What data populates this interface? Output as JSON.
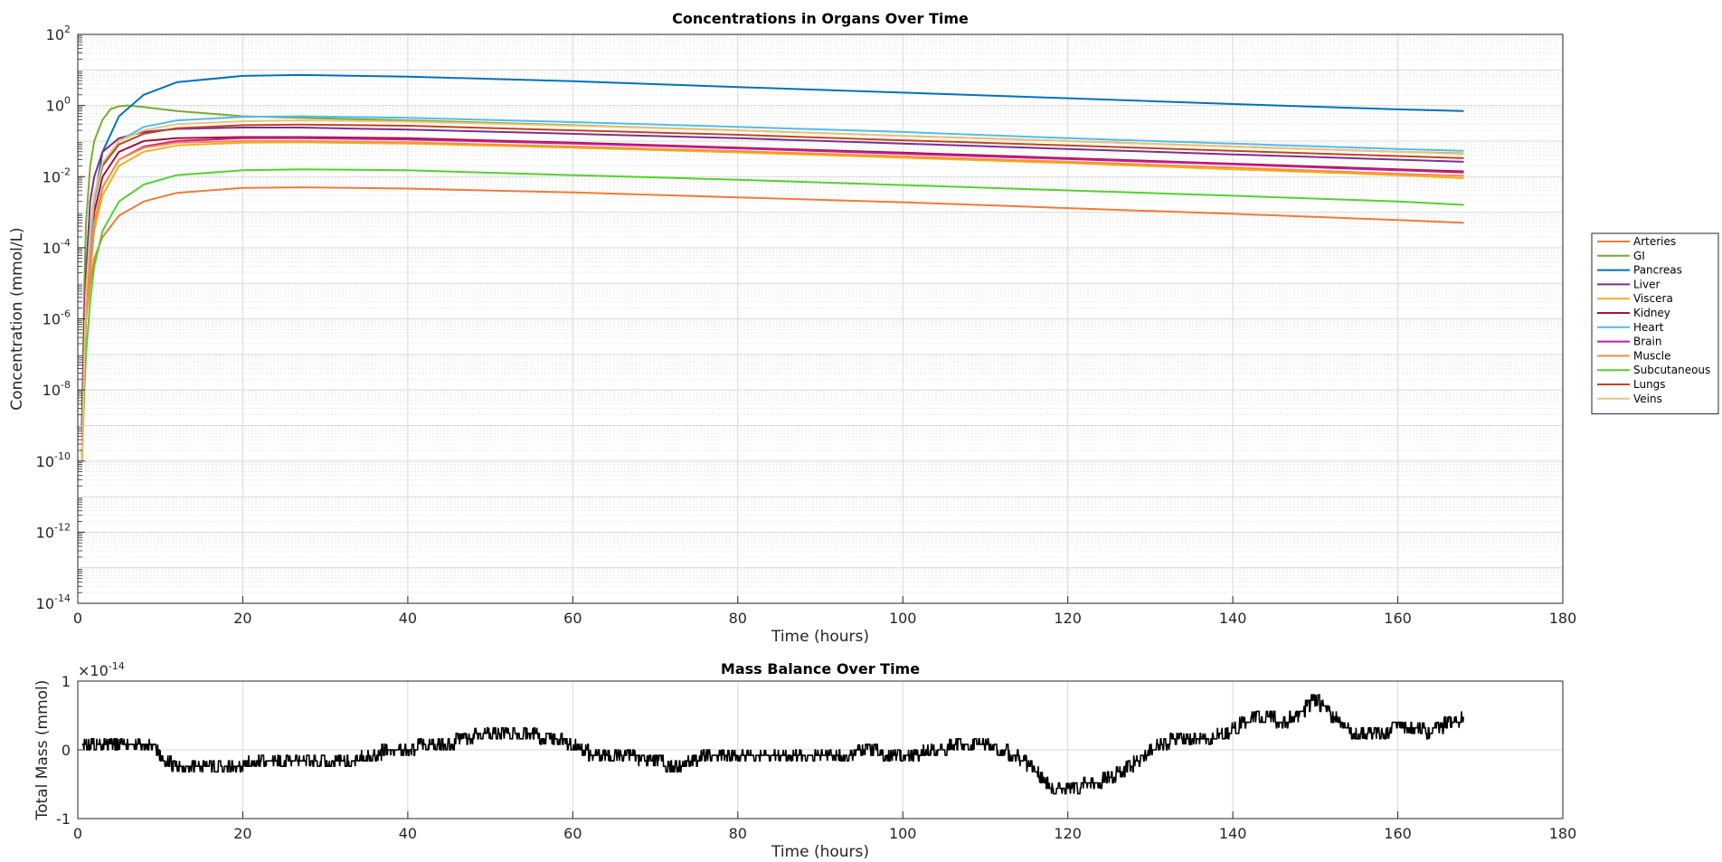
{
  "chart_data": [
    {
      "type": "line",
      "title": "Concentrations in Organs Over Time",
      "xlabel": "Time (hours)",
      "ylabel": "Concentration (mmol/L)",
      "xlim": [
        0,
        180
      ],
      "ylim": [
        1e-14,
        100
      ],
      "yscale": "log",
      "grid": true,
      "legend_position": "right",
      "xticks": [
        "0",
        "20",
        "40",
        "60",
        "80",
        "100",
        "120",
        "140",
        "160",
        "180"
      ],
      "yticks": [
        {
          "base": "10",
          "exp": "2",
          "value": 100
        },
        {
          "base": "10",
          "exp": "0",
          "value": 1
        },
        {
          "base": "10",
          "exp": "-2",
          "value": 0.01
        },
        {
          "base": "10",
          "exp": "-4",
          "value": 0.0001
        },
        {
          "base": "10",
          "exp": "-6",
          "value": 1e-06
        },
        {
          "base": "10",
          "exp": "-8",
          "value": 1e-08
        },
        {
          "base": "10",
          "exp": "-10",
          "value": 1e-10
        },
        {
          "base": "10",
          "exp": "-12",
          "value": 1e-12
        },
        {
          "base": "10",
          "exp": "-14",
          "value": 1e-14
        }
      ],
      "series": [
        {
          "name": "Arteries",
          "color": "#f07a3a",
          "x": [
            0.5,
            0.8,
            1,
            1.5,
            2,
            3,
            5,
            8,
            12,
            20,
            27,
            40,
            60,
            80,
            100,
            120,
            140,
            160,
            168
          ],
          "y": [
            1e-10,
            1e-07,
            1e-06,
            1e-05,
            5e-05,
            0.0002,
            0.0008,
            0.002,
            0.0035,
            0.0048,
            0.005,
            0.0046,
            0.0036,
            0.0026,
            0.0019,
            0.0013,
            0.0009,
            0.0006,
            0.0005
          ]
        },
        {
          "name": "GI",
          "color": "#77ac30",
          "x": [
            0.5,
            0.8,
            1,
            1.5,
            2,
            3,
            4,
            5,
            6,
            8,
            12,
            20,
            27,
            40,
            60,
            80,
            100,
            120,
            140,
            160,
            168
          ],
          "y": [
            1e-09,
            1e-05,
            0.0005,
            0.02,
            0.1,
            0.4,
            0.8,
            0.95,
            1.0,
            0.9,
            0.7,
            0.5,
            0.45,
            0.38,
            0.28,
            0.2,
            0.14,
            0.1,
            0.07,
            0.05,
            0.045
          ]
        },
        {
          "name": "Pancreas",
          "color": "#0072bd",
          "x": [
            0.5,
            1,
            1.5,
            2,
            3,
            5,
            8,
            12,
            20,
            27,
            40,
            60,
            80,
            100,
            120,
            140,
            160,
            168
          ],
          "y": [
            1e-09,
            1e-06,
            0.0001,
            0.002,
            0.05,
            0.5,
            2.0,
            4.5,
            6.8,
            7.2,
            6.5,
            4.8,
            3.3,
            2.3,
            1.6,
            1.1,
            0.78,
            0.7
          ]
        },
        {
          "name": "Liver",
          "color": "#7e2f8e",
          "x": [
            0.5,
            0.8,
            1,
            1.5,
            2,
            3,
            5,
            8,
            12,
            20,
            27,
            40,
            60,
            80,
            100,
            120,
            140,
            160,
            168
          ],
          "y": [
            1e-09,
            1e-06,
            2e-05,
            0.002,
            0.01,
            0.05,
            0.12,
            0.18,
            0.22,
            0.24,
            0.24,
            0.21,
            0.16,
            0.12,
            0.085,
            0.06,
            0.042,
            0.03,
            0.026
          ]
        },
        {
          "name": "Viscera",
          "color": "#edb120",
          "x": [
            0.5,
            0.8,
            1,
            1.5,
            2,
            3,
            5,
            8,
            12,
            20,
            27,
            40,
            60,
            80,
            100,
            120,
            140,
            160,
            168
          ],
          "y": [
            1e-10,
            1e-07,
            1e-06,
            2e-05,
            0.0003,
            0.003,
            0.02,
            0.05,
            0.075,
            0.09,
            0.092,
            0.085,
            0.065,
            0.048,
            0.034,
            0.024,
            0.016,
            0.011,
            0.009
          ]
        },
        {
          "name": "Kidney",
          "color": "#a2142f",
          "x": [
            0.5,
            0.8,
            1,
            1.5,
            2,
            3,
            5,
            8,
            12,
            20,
            27,
            40,
            60,
            80,
            100,
            120,
            140,
            160,
            168
          ],
          "y": [
            1e-10,
            1e-07,
            2e-06,
            5e-05,
            0.001,
            0.01,
            0.05,
            0.1,
            0.12,
            0.13,
            0.13,
            0.12,
            0.09,
            0.065,
            0.047,
            0.033,
            0.023,
            0.016,
            0.014
          ]
        },
        {
          "name": "Heart",
          "color": "#4dbeee",
          "x": [
            0.5,
            0.8,
            1,
            1.5,
            2,
            3,
            5,
            8,
            12,
            20,
            27,
            40,
            60,
            80,
            100,
            120,
            140,
            160,
            168
          ],
          "y": [
            1e-10,
            1e-07,
            2e-06,
            0.0001,
            0.002,
            0.02,
            0.1,
            0.25,
            0.38,
            0.48,
            0.5,
            0.45,
            0.34,
            0.25,
            0.18,
            0.12,
            0.085,
            0.06,
            0.053
          ]
        },
        {
          "name": "Brain",
          "color": "#c91aa5",
          "x": [
            0.5,
            0.8,
            1,
            1.5,
            2,
            3,
            5,
            8,
            12,
            20,
            27,
            40,
            60,
            80,
            100,
            120,
            140,
            160,
            168
          ],
          "y": [
            1e-10,
            1e-07,
            1e-06,
            3e-05,
            0.0005,
            0.005,
            0.03,
            0.07,
            0.1,
            0.12,
            0.12,
            0.11,
            0.085,
            0.062,
            0.044,
            0.031,
            0.022,
            0.015,
            0.013
          ]
        },
        {
          "name": "Muscle",
          "color": "#ff8c3a",
          "x": [
            0.5,
            0.8,
            1,
            1.5,
            2,
            3,
            5,
            8,
            12,
            20,
            27,
            40,
            60,
            80,
            100,
            120,
            140,
            160,
            168
          ],
          "y": [
            1e-10,
            1e-07,
            1e-06,
            3e-05,
            0.0005,
            0.005,
            0.03,
            0.065,
            0.09,
            0.1,
            0.1,
            0.092,
            0.07,
            0.052,
            0.037,
            0.026,
            0.018,
            0.012,
            0.0105
          ]
        },
        {
          "name": "Subcutaneous",
          "color": "#53d12f",
          "x": [
            0.5,
            0.8,
            1,
            1.5,
            2,
            3,
            5,
            8,
            12,
            20,
            27,
            40,
            60,
            80,
            100,
            120,
            140,
            160,
            168
          ],
          "y": [
            1e-10,
            1e-08,
            1e-07,
            3e-06,
            3e-05,
            0.0003,
            0.002,
            0.006,
            0.011,
            0.015,
            0.016,
            0.015,
            0.011,
            0.0081,
            0.0058,
            0.0041,
            0.0029,
            0.002,
            0.0016
          ]
        },
        {
          "name": "Lungs",
          "color": "#b84a22",
          "x": [
            0.5,
            0.8,
            1,
            1.5,
            2,
            3,
            5,
            8,
            12,
            20,
            27,
            40,
            60,
            80,
            100,
            120,
            140,
            160,
            168
          ],
          "y": [
            1e-10,
            1e-07,
            5e-06,
            0.0003,
            0.003,
            0.02,
            0.08,
            0.16,
            0.23,
            0.28,
            0.29,
            0.27,
            0.2,
            0.15,
            0.105,
            0.075,
            0.053,
            0.038,
            0.033
          ]
        },
        {
          "name": "Veins",
          "color": "#f4c07a",
          "x": [
            0.5,
            0.8,
            1,
            1.5,
            2,
            3,
            5,
            8,
            12,
            20,
            27,
            40,
            60,
            80,
            100,
            120,
            140,
            160,
            168
          ],
          "y": [
            1e-10,
            1e-07,
            5e-06,
            0.0003,
            0.003,
            0.025,
            0.1,
            0.2,
            0.3,
            0.36,
            0.38,
            0.35,
            0.27,
            0.2,
            0.14,
            0.1,
            0.07,
            0.05,
            0.043
          ]
        }
      ]
    },
    {
      "type": "line",
      "title": "Mass Balance Over Time",
      "xlabel": "Time (hours)",
      "ylabel": "Total Mass (mmol)",
      "xlim": [
        0,
        180
      ],
      "ylim": [
        -1e-14,
        1e-14
      ],
      "scale_label_base": "×10",
      "scale_label_exp": "-14",
      "grid": true,
      "xticks": [
        "0",
        "20",
        "40",
        "60",
        "80",
        "100",
        "120",
        "140",
        "160",
        "180"
      ],
      "yticks": [
        "1",
        "0",
        "-1"
      ],
      "series": [
        {
          "name": "",
          "color": "#000000",
          "x": [
            0,
            1,
            2,
            5,
            9,
            10,
            12,
            15,
            20,
            25,
            30,
            35,
            38,
            42,
            45,
            48,
            52,
            56,
            60,
            62,
            66,
            70,
            72,
            76,
            80,
            84,
            88,
            92,
            96,
            100,
            104,
            108,
            110,
            112,
            114,
            116,
            118,
            120,
            122,
            124,
            126,
            128,
            130,
            132,
            134,
            136,
            138,
            140,
            142,
            144,
            146,
            148,
            150,
            152,
            154,
            156,
            158,
            160,
            162,
            164,
            166,
            168
          ],
          "y": [
            0,
            0.1,
            0.1,
            0.1,
            0.1,
            -0.1,
            -0.25,
            -0.25,
            -0.2,
            -0.15,
            -0.2,
            -0.1,
            0,
            0.05,
            0.1,
            0.2,
            0.25,
            0.2,
            0.1,
            -0.05,
            -0.1,
            -0.15,
            -0.25,
            -0.1,
            -0.05,
            -0.1,
            -0.05,
            -0.1,
            0,
            -0.1,
            0,
            0.1,
            0.05,
            0,
            -0.1,
            -0.3,
            -0.55,
            -0.6,
            -0.5,
            -0.45,
            -0.35,
            -0.2,
            0,
            0.1,
            0.2,
            0.15,
            0.2,
            0.3,
            0.45,
            0.5,
            0.4,
            0.5,
            0.75,
            0.5,
            0.3,
            0.2,
            0.25,
            0.3,
            0.35,
            0.25,
            0.4,
            0.45
          ]
        }
      ]
    }
  ]
}
